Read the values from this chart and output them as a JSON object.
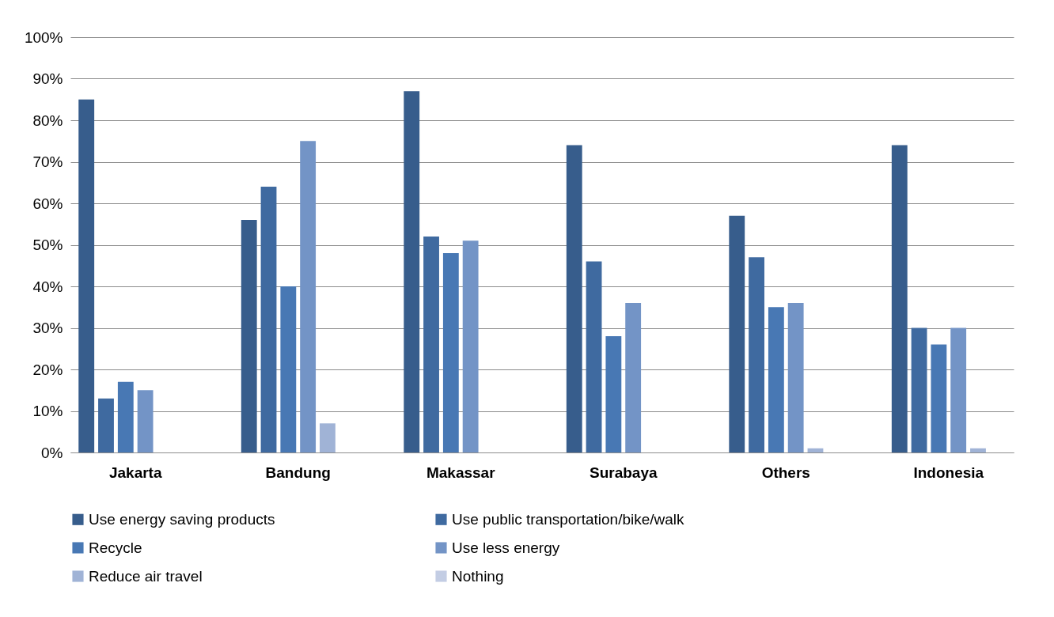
{
  "chart_data": {
    "type": "bar",
    "categories": [
      "Jakarta",
      "Bandung",
      "Makassar",
      "Surabaya",
      "Others",
      "Indonesia"
    ],
    "series": [
      {
        "name": "Use energy saving products",
        "color": "#375d8c",
        "values": [
          85,
          56,
          87,
          74,
          57,
          74
        ]
      },
      {
        "name": "Use public transportation/bike/walk",
        "color": "#3f6aa0",
        "values": [
          13,
          64,
          52,
          46,
          47,
          30
        ]
      },
      {
        "name": "Recycle",
        "color": "#4878b4",
        "values": [
          17,
          40,
          48,
          28,
          35,
          26
        ]
      },
      {
        "name": "Use less energy",
        "color": "#7394c6",
        "values": [
          15,
          75,
          51,
          36,
          36,
          30
        ]
      },
      {
        "name": "Reduce air travel",
        "color": "#a0b3d6",
        "values": [
          0,
          7,
          0,
          0,
          1,
          1
        ]
      },
      {
        "name": "Nothing",
        "color": "#c3cde4",
        "values": [
          0,
          0,
          0,
          0,
          0,
          0
        ]
      }
    ],
    "ylim": [
      0,
      100
    ],
    "yticks": [
      {
        "value": 0,
        "label": "0%"
      },
      {
        "value": 10,
        "label": "10%"
      },
      {
        "value": 20,
        "label": "20%"
      },
      {
        "value": 30,
        "label": "30%"
      },
      {
        "value": 40,
        "label": "40%"
      },
      {
        "value": 50,
        "label": "50%"
      },
      {
        "value": 60,
        "label": "60%"
      },
      {
        "value": 70,
        "label": "70%"
      },
      {
        "value": 80,
        "label": "80%"
      },
      {
        "value": 90,
        "label": "90%"
      },
      {
        "value": 100,
        "label": "100%"
      }
    ],
    "grid": "y",
    "legend": "bottom"
  }
}
